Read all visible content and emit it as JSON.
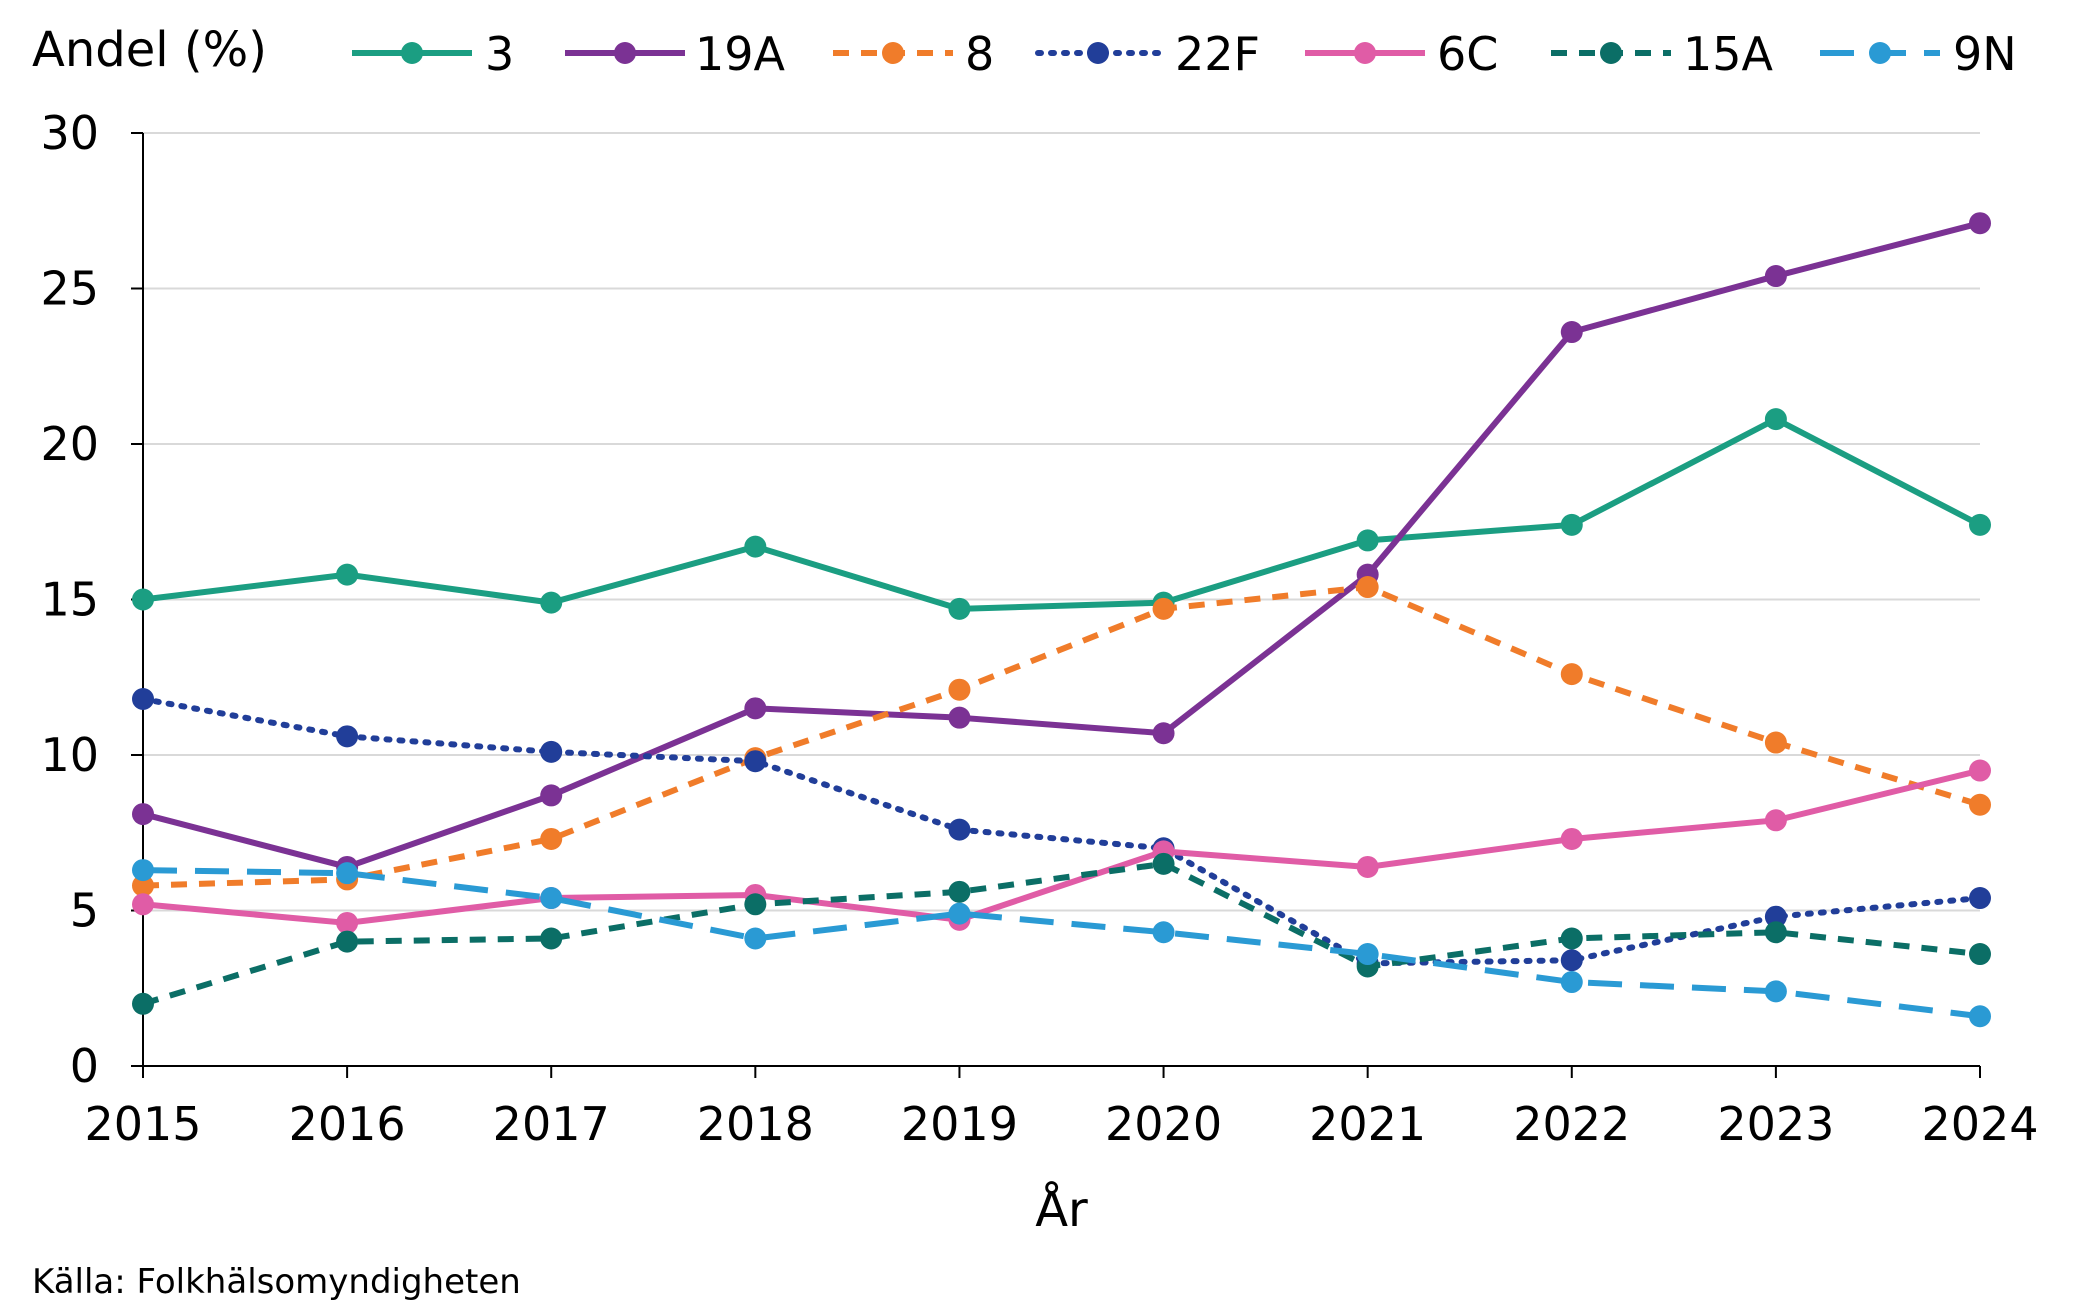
{
  "chart_data": {
    "type": "line",
    "ylabel": "Andel (%)",
    "xlabel": "År",
    "source": "Källa: Folkhälsomyndigheten",
    "x": [
      2015,
      2016,
      2017,
      2018,
      2019,
      2020,
      2021,
      2022,
      2023,
      2024
    ],
    "x_tick_labels": [
      "2015",
      "2016",
      "2017",
      "2018",
      "2019",
      "2020",
      "2021",
      "2022",
      "2023",
      "2024"
    ],
    "y_ticks": [
      0,
      5,
      10,
      15,
      20,
      25,
      30
    ],
    "y_tick_labels": [
      "0",
      "5",
      "10",
      "15",
      "20",
      "25",
      "30"
    ],
    "ylim": [
      0,
      30
    ],
    "grid": "horizontal",
    "legend_position": "top",
    "series": [
      {
        "name": "3",
        "color": "#1b9e82",
        "dash": "solid",
        "values": [
          15.0,
          15.8,
          14.9,
          16.7,
          14.7,
          14.9,
          16.9,
          17.4,
          20.8,
          17.4
        ]
      },
      {
        "name": "19A",
        "color": "#7b3294",
        "dash": "solid",
        "values": [
          8.1,
          6.4,
          8.7,
          11.5,
          11.2,
          10.7,
          15.8,
          23.6,
          25.4,
          27.1
        ]
      },
      {
        "name": "8",
        "color": "#f07c2a",
        "dash": "dashed",
        "values": [
          5.8,
          6.0,
          7.3,
          9.9,
          12.1,
          14.7,
          15.4,
          12.6,
          10.4,
          8.4
        ]
      },
      {
        "name": "22F",
        "color": "#213e99",
        "dash": "dotted",
        "values": [
          11.8,
          10.6,
          10.1,
          9.8,
          7.6,
          7.0,
          3.3,
          3.4,
          4.8,
          5.4
        ]
      },
      {
        "name": "6C",
        "color": "#e05ca6",
        "dash": "solid",
        "values": [
          5.2,
          4.6,
          5.4,
          5.5,
          4.7,
          6.9,
          6.4,
          7.3,
          7.9,
          9.5
        ]
      },
      {
        "name": "15A",
        "color": "#0b6e66",
        "dash": "dashed",
        "values": [
          2.0,
          4.0,
          4.1,
          5.2,
          5.6,
          6.5,
          3.2,
          4.1,
          4.3,
          3.6
        ]
      },
      {
        "name": "9N",
        "color": "#2a9ad4",
        "dash": "longdash",
        "values": [
          6.3,
          6.2,
          5.4,
          4.1,
          4.9,
          4.3,
          3.6,
          2.7,
          2.4,
          1.6
        ]
      }
    ]
  }
}
